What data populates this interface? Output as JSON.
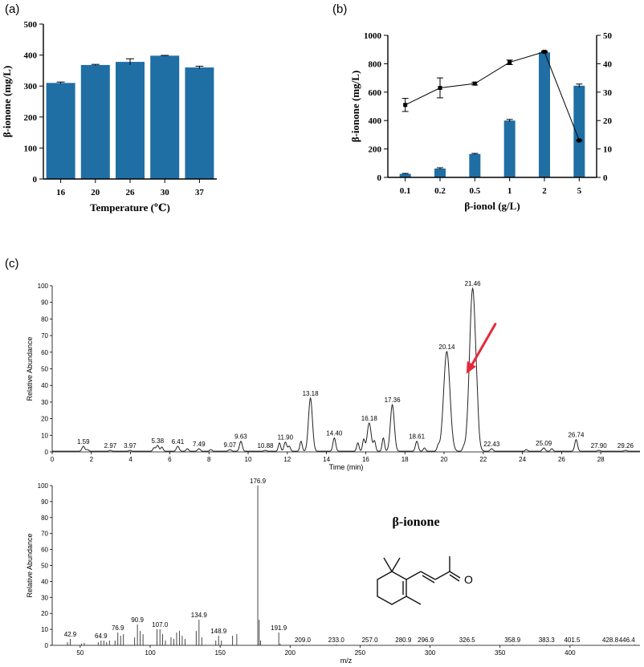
{
  "panel_labels": {
    "a": "(a)",
    "b": "(b)",
    "c": "(c)"
  },
  "colors": {
    "bar": "#1f6fa5",
    "arrow": "#e5283c",
    "trace": "#222222"
  },
  "molecule": {
    "name": "β-ionone",
    "icon": "beta-ionone-structure-icon"
  },
  "chart_data": [
    {
      "id": "a",
      "type": "bar",
      "xlabel": "Temperature (℃)",
      "ylabel": "β-ionone (mg/L)",
      "categories": [
        "16",
        "20",
        "26",
        "30",
        "37"
      ],
      "values": [
        310,
        368,
        378,
        398,
        360
      ],
      "errors": [
        3,
        2,
        10,
        1,
        4
      ],
      "ylim": [
        0,
        500
      ],
      "yticks": [
        0,
        100,
        200,
        300,
        400,
        500
      ]
    },
    {
      "id": "b",
      "type": "bar",
      "xlabel": "β-ionol (g/L)",
      "ylabel": "β-ionone (mg/L)",
      "categories": [
        "0.1",
        "0.2",
        "0.5",
        "1",
        "2",
        "5"
      ],
      "series": [
        {
          "values": [
            25,
            62,
            165,
            400,
            880,
            645
          ],
          "errors": [
            3,
            6,
            4,
            8,
            4,
            12
          ],
          "axis": "left",
          "kind": "bar"
        },
        {
          "values": [
            25.5,
            31.5,
            33,
            40.5,
            44.2,
            13
          ],
          "errors": [
            2.3,
            3.5,
            0.5,
            0.8,
            0.3,
            0.2
          ],
          "axis": "right",
          "kind": "line"
        }
      ],
      "ylim": [
        0,
        1000
      ],
      "yticks": [
        0,
        200,
        400,
        600,
        800,
        1000
      ],
      "y2lim": [
        0,
        50
      ],
      "y2ticks": [
        0,
        10,
        20,
        30,
        40,
        50
      ]
    },
    {
      "id": "c-chromatogram",
      "type": "line",
      "xlabel": "Time (min)",
      "ylabel": "Relative Abundance",
      "xlim": [
        0,
        30
      ],
      "xticks": [
        0,
        2,
        4,
        6,
        8,
        10,
        12,
        14,
        16,
        18,
        20,
        22,
        24,
        26,
        28
      ],
      "ylim": [
        0,
        100
      ],
      "yticks": [
        0,
        10,
        20,
        30,
        40,
        50,
        60,
        70,
        80,
        90,
        100
      ],
      "peaks": [
        {
          "x": 1.59,
          "y": 3,
          "label": "1.59"
        },
        {
          "x": 2.97,
          "y": 0.5,
          "label": "2.97"
        },
        {
          "x": 3.97,
          "y": 0.5,
          "label": "3.97"
        },
        {
          "x": 5.38,
          "y": 3.5,
          "label": "5.38"
        },
        {
          "x": 6.41,
          "y": 3,
          "label": "6.41"
        },
        {
          "x": 7.49,
          "y": 1.5,
          "label": "7.49"
        },
        {
          "x": 9.07,
          "y": 1,
          "label": "9.07"
        },
        {
          "x": 9.63,
          "y": 6,
          "label": "9.63"
        },
        {
          "x": 10.88,
          "y": 0.5,
          "label": "10.88"
        },
        {
          "x": 11.9,
          "y": 5.5,
          "label": "11.90"
        },
        {
          "x": 13.18,
          "y": 32,
          "label": "13.18"
        },
        {
          "x": 14.4,
          "y": 8,
          "label": "14.40"
        },
        {
          "x": 16.18,
          "y": 17,
          "label": "16.18"
        },
        {
          "x": 17.36,
          "y": 28,
          "label": "17.36"
        },
        {
          "x": 18.61,
          "y": 6,
          "label": "18.61"
        },
        {
          "x": 20.14,
          "y": 60,
          "label": "20.14"
        },
        {
          "x": 21.46,
          "y": 98,
          "label": "21.46"
        },
        {
          "x": 22.43,
          "y": 1.5,
          "label": "22.43"
        },
        {
          "x": 25.09,
          "y": 2,
          "label": "25.09"
        },
        {
          "x": 26.74,
          "y": 7,
          "label": "26.74"
        },
        {
          "x": 27.9,
          "y": 0.5,
          "label": "27.90"
        },
        {
          "x": 29.26,
          "y": 0.5,
          "label": "29.26"
        }
      ],
      "minor_peaks": [
        {
          "x": 1.8,
          "y": 1
        },
        {
          "x": 5.2,
          "y": 2
        },
        {
          "x": 5.6,
          "y": 2.5
        },
        {
          "x": 6.9,
          "y": 1.5
        },
        {
          "x": 8.1,
          "y": 1
        },
        {
          "x": 11.6,
          "y": 5
        },
        {
          "x": 12.1,
          "y": 3
        },
        {
          "x": 12.7,
          "y": 6
        },
        {
          "x": 15.6,
          "y": 5
        },
        {
          "x": 15.9,
          "y": 7
        },
        {
          "x": 16.45,
          "y": 6
        },
        {
          "x": 16.9,
          "y": 8
        },
        {
          "x": 19.0,
          "y": 2
        },
        {
          "x": 19.7,
          "y": 3
        },
        {
          "x": 21.0,
          "y": 2
        },
        {
          "x": 21.7,
          "y": 6
        },
        {
          "x": 24.2,
          "y": 1
        },
        {
          "x": 25.5,
          "y": 1.5
        }
      ],
      "annotation": {
        "type": "arrow",
        "target_x": 21.1,
        "target_y": 47
      }
    },
    {
      "id": "c-mass-spectrum",
      "type": "bar",
      "xlabel": "m/z",
      "ylabel": "Relative Abundance",
      "xlim": [
        30,
        450
      ],
      "xticks": [
        50,
        100,
        150,
        200,
        250,
        300,
        350,
        400
      ],
      "ylim": [
        0,
        100
      ],
      "yticks": [
        0,
        10,
        20,
        30,
        40,
        50,
        60,
        70,
        80,
        90,
        100
      ],
      "labeled_peaks": [
        {
          "x": 42.9,
          "y": 4,
          "label": "42.9"
        },
        {
          "x": 64.9,
          "y": 3,
          "label": "64.9"
        },
        {
          "x": 76.9,
          "y": 8,
          "label": "76.9"
        },
        {
          "x": 90.9,
          "y": 13,
          "label": "90.9"
        },
        {
          "x": 107.0,
          "y": 10,
          "label": "107.0"
        },
        {
          "x": 134.9,
          "y": 16,
          "label": "134.9"
        },
        {
          "x": 148.9,
          "y": 6,
          "label": "148.9"
        },
        {
          "x": 176.9,
          "y": 100,
          "label": "176.9"
        },
        {
          "x": 191.9,
          "y": 8,
          "label": "191.9"
        },
        {
          "x": 209.0,
          "y": 0.5,
          "label": "209.0"
        },
        {
          "x": 233.0,
          "y": 0.5,
          "label": "233.0"
        },
        {
          "x": 257.0,
          "y": 0.5,
          "label": "257.0"
        },
        {
          "x": 280.9,
          "y": 0.5,
          "label": "280.9"
        },
        {
          "x": 296.9,
          "y": 0.5,
          "label": "296.9"
        },
        {
          "x": 326.5,
          "y": 0.5,
          "label": "326.5"
        },
        {
          "x": 358.9,
          "y": 0.5,
          "label": "358.9"
        },
        {
          "x": 383.3,
          "y": 0.5,
          "label": "383.3"
        },
        {
          "x": 401.5,
          "y": 0.5,
          "label": "401.5"
        },
        {
          "x": 428.8,
          "y": 0.5,
          "label": "428.8"
        },
        {
          "x": 446.4,
          "y": 0.5,
          "label": "446.4"
        }
      ],
      "minor_peaks": [
        {
          "x": 40.9,
          "y": 2
        },
        {
          "x": 50.9,
          "y": 1
        },
        {
          "x": 52.9,
          "y": 1.5
        },
        {
          "x": 62.9,
          "y": 2
        },
        {
          "x": 66.9,
          "y": 3
        },
        {
          "x": 68.9,
          "y": 2
        },
        {
          "x": 70.9,
          "y": 3
        },
        {
          "x": 74.9,
          "y": 3
        },
        {
          "x": 78.9,
          "y": 6
        },
        {
          "x": 80.9,
          "y": 7
        },
        {
          "x": 88.9,
          "y": 5
        },
        {
          "x": 92.9,
          "y": 9
        },
        {
          "x": 94.9,
          "y": 7
        },
        {
          "x": 104.9,
          "y": 10
        },
        {
          "x": 108.9,
          "y": 7
        },
        {
          "x": 110.9,
          "y": 3
        },
        {
          "x": 114.9,
          "y": 5
        },
        {
          "x": 116.9,
          "y": 4
        },
        {
          "x": 118.9,
          "y": 8
        },
        {
          "x": 120.9,
          "y": 9
        },
        {
          "x": 122.9,
          "y": 6
        },
        {
          "x": 124.9,
          "y": 4
        },
        {
          "x": 132.9,
          "y": 9
        },
        {
          "x": 136.9,
          "y": 5
        },
        {
          "x": 146.9,
          "y": 3
        },
        {
          "x": 150.9,
          "y": 3
        },
        {
          "x": 158.9,
          "y": 6
        },
        {
          "x": 161.9,
          "y": 7
        },
        {
          "x": 177.9,
          "y": 16
        },
        {
          "x": 178.9,
          "y": 3
        },
        {
          "x": 192.9,
          "y": 1
        }
      ]
    }
  ]
}
